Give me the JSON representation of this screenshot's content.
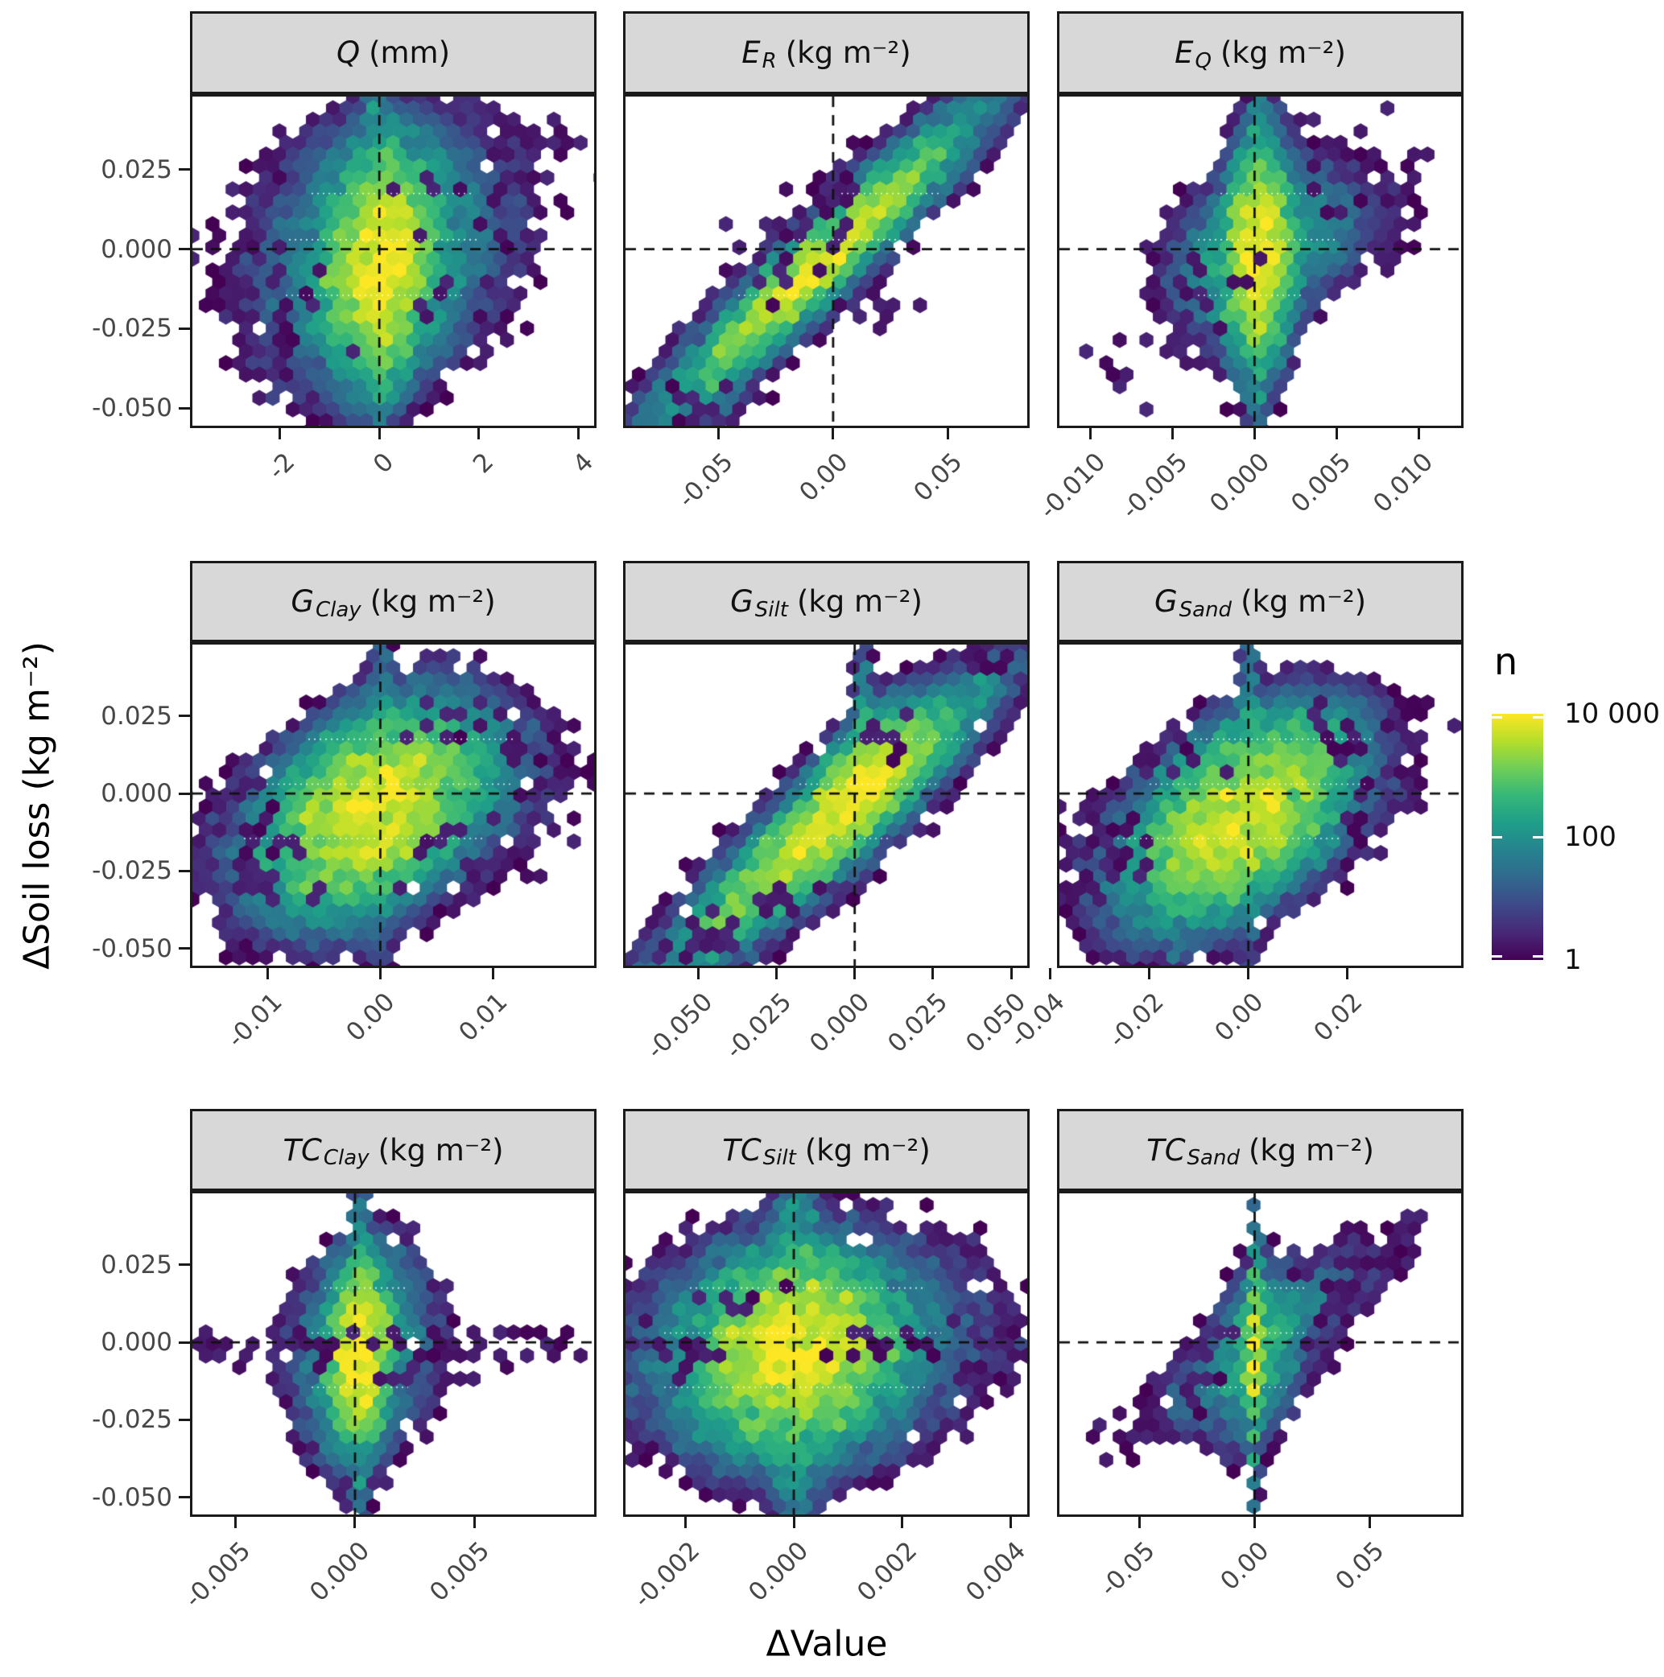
{
  "figure": {
    "y_axis_label": "ΔSoil loss (kg m⁻²)",
    "x_axis_label": "ΔValue",
    "colors": {
      "background": "#ffffff",
      "strip_bg": "#d8d8d8",
      "border": "#1a1a1a",
      "tick_label": "#474747",
      "dashed_line": "#111111",
      "white_guide": "#ffffff"
    },
    "viridis": [
      "#440154",
      "#482878",
      "#3e4989",
      "#31688e",
      "#26828e",
      "#1f9e89",
      "#35b779",
      "#6ece58",
      "#b5de2b",
      "#fde725"
    ]
  },
  "legend": {
    "title": "n",
    "labels": [
      "10 000",
      "100",
      "1"
    ],
    "values": [
      10000,
      100,
      1
    ],
    "scale": "log10",
    "domain": [
      1,
      10000
    ]
  },
  "chart_data": {
    "type": "heatmap",
    "subtype": "hexbin_facet_grid",
    "rows": 3,
    "cols": 3,
    "y_range": [
      -0.0555,
      0.048
    ],
    "y_ticks": {
      "labels": [
        "0.025",
        "0.000",
        "-0.025",
        "-0.050"
      ],
      "values": [
        0.025,
        0.0,
        -0.025,
        -0.05
      ]
    },
    "white_guide_y": [
      0.0175,
      0.003,
      -0.0145
    ],
    "zero_lines": {
      "x": 0,
      "y": 0
    },
    "panels": [
      {
        "id": "Q",
        "title": {
          "symbol": "Q",
          "subscript": "",
          "unit": "(mm)"
        },
        "x_range": [
          -3.76,
          4.32
        ],
        "x_ticks": {
          "labels": [
            "-2",
            "0",
            "2",
            "4"
          ],
          "values": [
            -2,
            0,
            2,
            4
          ]
        },
        "seed": 101,
        "clusters": [
          [
            0.05,
            -0.0045,
            0.42,
            0.0135,
            0.15,
            9000
          ],
          [
            0.0,
            -0.001,
            0.95,
            0.0165,
            0.2,
            260
          ],
          [
            0.0,
            -0.004,
            0.14,
            0.0265,
            0,
            380
          ],
          [
            0.2,
            0.004,
            1.5,
            0.019,
            0.3,
            7
          ]
        ],
        "outliers": [
          [
            -2.3,
            -0.004,
            0.55,
            0.011,
            22
          ],
          [
            2.9,
            0.031,
            0.65,
            0.007,
            16
          ],
          [
            1.9,
            0.014,
            0.8,
            0.009,
            12
          ],
          [
            -1.6,
            -0.028,
            0.5,
            0.008,
            12
          ],
          [
            1.4,
            -0.018,
            0.7,
            0.008,
            10
          ],
          [
            -2.9,
            0.001,
            0.4,
            0.004,
            6
          ],
          [
            3.6,
            0.036,
            0.3,
            0.004,
            5
          ]
        ]
      },
      {
        "id": "E_R",
        "title": {
          "symbol": "E",
          "subscript": "R",
          "unit": "(kg m⁻²)"
        },
        "x_range": [
          -0.0906,
          0.0847
        ],
        "x_ticks": {
          "labels": [
            "-0.05",
            "0.00",
            "0.05"
          ],
          "values": [
            -0.05,
            0.0,
            0.05
          ]
        },
        "seed": 202,
        "clusters": [
          [
            -0.005,
            -0.004,
            0.0195,
            0.0135,
            0.955,
            8000
          ],
          [
            -0.005,
            -0.004,
            0.0295,
            0.0205,
            0.955,
            900
          ],
          [
            -0.005,
            -0.004,
            0.036,
            0.0255,
            0.93,
            40
          ],
          [
            0.055,
            0.0365,
            0.009,
            0.0055,
            0.8,
            18
          ]
        ],
        "outliers": [
          [
            0.003,
            0.018,
            0.006,
            0.007,
            16
          ],
          [
            -0.028,
            -0.008,
            0.009,
            0.007,
            12
          ],
          [
            0.018,
            -0.018,
            0.009,
            0.005,
            8
          ],
          [
            -0.06,
            -0.048,
            0.007,
            0.004,
            8
          ],
          [
            -0.02,
            0.008,
            0.006,
            0.005,
            8
          ]
        ]
      },
      {
        "id": "E_Q",
        "title": {
          "symbol": "E",
          "subscript": "Q",
          "unit": "(kg m⁻²)"
        },
        "x_range": [
          -0.0119,
          0.0126
        ],
        "x_ticks": {
          "labels": [
            "-0.010",
            "-0.005",
            "0.000",
            "0.005",
            "0.010"
          ],
          "values": [
            -0.01,
            -0.005,
            0.0,
            0.005,
            0.01
          ]
        },
        "seed": 303,
        "clusters": [
          [
            0.0002,
            -0.0015,
            0.0008,
            0.0125,
            0.1,
            9000
          ],
          [
            0.0004,
            0.0005,
            0.0021,
            0.0105,
            0.35,
            260
          ],
          [
            0.0002,
            -0.002,
            0.00028,
            0.0265,
            0,
            420
          ],
          [
            0.002,
            0.0045,
            0.0032,
            0.0085,
            0.35,
            22
          ]
        ],
        "outliers": [
          [
            -0.0055,
            -0.0285,
            0.0022,
            0.0085,
            20
          ],
          [
            0.0068,
            0.0275,
            0.0018,
            0.0055,
            13
          ],
          [
            -0.0035,
            -0.009,
            0.0018,
            0.005,
            11
          ],
          [
            0.0045,
            0.013,
            0.002,
            0.007,
            9
          ],
          [
            -0.008,
            -0.038,
            0.0015,
            0.003,
            5
          ]
        ]
      },
      {
        "id": "G_Clay",
        "title": {
          "symbol": "G",
          "subscript": "Clay",
          "unit": "(kg m⁻²)"
        },
        "x_range": [
          -0.0167,
          0.019
        ],
        "x_ticks": {
          "labels": [
            "-0.01",
            "0.00",
            "0.01"
          ],
          "values": [
            -0.01,
            0.0,
            0.01
          ]
        },
        "seed": 404,
        "clusters": [
          [
            -0.0005,
            -0.0055,
            0.0036,
            0.0122,
            0.42,
            6500
          ],
          [
            0.0018,
            0.0042,
            0.0048,
            0.0085,
            0.3,
            210
          ],
          [
            -0.001,
            -0.011,
            0.0062,
            0.0115,
            0.28,
            60
          ],
          [
            0.0,
            -0.001,
            0.0005,
            0.025,
            0,
            100
          ]
        ],
        "outliers": [
          [
            -0.0105,
            -0.0275,
            0.0028,
            0.0075,
            22
          ],
          [
            0.0085,
            -0.021,
            0.0038,
            0.0065,
            18
          ],
          [
            0.0065,
            0.0205,
            0.0035,
            0.0055,
            14
          ],
          [
            -0.0125,
            -0.004,
            0.002,
            0.0055,
            11
          ],
          [
            0.0135,
            -0.0005,
            0.002,
            0.009,
            9
          ],
          [
            0.0145,
            0.0125,
            0.0018,
            0.0035,
            6
          ]
        ]
      },
      {
        "id": "G_Silt",
        "title": {
          "symbol": "G",
          "subscript": "Silt",
          "unit": "(kg m⁻²)"
        },
        "x_range": [
          -0.0732,
          0.0551
        ],
        "x_ticks": {
          "labels": [
            "-0.050",
            "-0.025",
            "0.000",
            "0.025",
            "0.050"
          ],
          "values": [
            -0.05,
            -0.025,
            0.0,
            0.025,
            0.05
          ]
        },
        "seed": 505,
        "clusters": [
          [
            -0.009,
            -0.011,
            0.0175,
            0.016,
            0.925,
            4200
          ],
          [
            0.002,
            0.002,
            0.0088,
            0.0098,
            0.72,
            7200
          ],
          [
            -0.009,
            -0.011,
            0.023,
            0.0205,
            0.87,
            55
          ],
          [
            0.0028,
            0.013,
            0.0013,
            0.0125,
            0,
            520
          ],
          [
            0.031,
            0.0295,
            0.0085,
            0.007,
            0.8,
            22
          ]
        ],
        "outliers": [
          [
            -0.047,
            -0.046,
            0.006,
            0.004,
            13
          ],
          [
            0.041,
            0.041,
            0.005,
            0.0035,
            10
          ],
          [
            -0.021,
            -0.036,
            0.0055,
            0.0045,
            9
          ],
          [
            0.012,
            0.021,
            0.0045,
            0.0045,
            8
          ],
          [
            -0.058,
            -0.05,
            0.003,
            0.002,
            5
          ]
        ]
      },
      {
        "id": "G_Sand",
        "title": {
          "symbol": "G",
          "subscript": "Sand",
          "unit": "(kg m⁻²)"
        },
        "x_range": [
          -0.0381,
          0.0429
        ],
        "x_ticks": {
          "labels": [
            "-0.04",
            "-0.02",
            "0.00",
            "0.02"
          ],
          "values": [
            -0.04,
            -0.02,
            0.0,
            0.02
          ]
        },
        "seed": 606,
        "clusters": [
          [
            -0.002,
            -0.008,
            0.0082,
            0.0122,
            0.5,
            5200
          ],
          [
            0.0035,
            0.0085,
            0.0088,
            0.0088,
            0.42,
            150
          ],
          [
            -0.003,
            -0.0115,
            0.0135,
            0.0125,
            0.45,
            42
          ],
          [
            0.0,
            0.004,
            0.0009,
            0.0235,
            0,
            160
          ]
        ],
        "outliers": [
          [
            -0.026,
            -0.018,
            0.0055,
            0.0065,
            20
          ],
          [
            0.021,
            0.019,
            0.0055,
            0.0055,
            15
          ],
          [
            -0.016,
            0.0085,
            0.0045,
            0.0055,
            12
          ],
          [
            0.026,
            -0.0045,
            0.0045,
            0.0075,
            10
          ],
          [
            -0.033,
            -0.029,
            0.0035,
            0.0035,
            7
          ],
          [
            0.032,
            0.0235,
            0.0025,
            0.0035,
            6
          ]
        ]
      },
      {
        "id": "TC_Clay",
        "title": {
          "symbol": "TC",
          "subscript": "Clay",
          "unit": "(kg m⁻²)"
        },
        "x_range": [
          -0.0068,
          0.01
        ],
        "x_ticks": {
          "labels": [
            "-0.005",
            "0.000",
            "0.005"
          ],
          "values": [
            -0.005,
            0.0,
            0.005
          ]
        },
        "seed": 707,
        "clusters": [
          [
            0.0002,
            -0.0035,
            0.00052,
            0.0112,
            0.1,
            9500
          ],
          [
            0.0003,
            -0.002,
            0.00115,
            0.0132,
            0.15,
            260
          ],
          [
            0.0002,
            -0.003,
            0.00018,
            0.0255,
            0,
            320
          ]
        ],
        "outliers": [
          [
            -0.003,
            0.0002,
            0.0014,
            0.0022,
            15
          ],
          [
            0.0042,
            -0.0008,
            0.0018,
            0.0018,
            13
          ],
          [
            0.003,
            -0.0098,
            0.0016,
            0.0022,
            9
          ],
          [
            -0.0052,
            -0.0032,
            0.0008,
            0.0018,
            7
          ],
          [
            0.0072,
            0.0028,
            0.001,
            0.0014,
            6
          ],
          [
            0.0088,
            -0.0025,
            0.0006,
            0.001,
            4
          ]
        ]
      },
      {
        "id": "TC_Silt",
        "title": {
          "symbol": "TC",
          "subscript": "Silt",
          "unit": "(kg m⁻²)"
        },
        "x_range": [
          -0.0031,
          0.0043
        ],
        "x_ticks": {
          "labels": [
            "-0.002",
            "0.000",
            "0.002",
            "0.004"
          ],
          "values": [
            -0.002,
            0.0,
            0.002,
            0.004
          ]
        },
        "seed": 808,
        "clusters": [
          [
            5e-05,
            -0.003,
            0.00068,
            0.0118,
            0.1,
            8000
          ],
          [
            0.0001,
            -0.0012,
            0.00125,
            0.0142,
            0.12,
            260
          ],
          [
            5e-05,
            -0.002,
            0.0002,
            0.0255,
            0,
            320
          ]
        ],
        "outliers": [
          [
            -0.0019,
            -0.0042,
            0.00055,
            0.0038,
            13
          ],
          [
            0.0019,
            0.0002,
            0.0007,
            0.0028,
            13
          ],
          [
            0.0029,
            -0.0098,
            0.0007,
            0.0018,
            8
          ],
          [
            -0.0013,
            0.0125,
            0.00055,
            0.0035,
            7
          ],
          [
            0.0038,
            0.0005,
            0.0003,
            0.001,
            4
          ]
        ]
      },
      {
        "id": "TC_Sand",
        "title": {
          "symbol": "TC",
          "subscript": "Sand",
          "unit": "(kg m⁻²)"
        },
        "x_range": [
          -0.085,
          0.0899
        ],
        "x_ticks": {
          "labels": [
            "-0.05",
            "0.00",
            "0.05"
          ],
          "values": [
            -0.05,
            0.0,
            0.05
          ]
        },
        "seed": 909,
        "clusters": [
          [
            0.0002,
            -0.003,
            0.0013,
            0.0108,
            0.1,
            9000
          ],
          [
            0.0012,
            -0.0035,
            0.0078,
            0.0108,
            0.3,
            420
          ],
          [
            0.0125,
            0.006,
            0.0175,
            0.0105,
            0.75,
            55
          ],
          [
            -0.014,
            -0.0115,
            0.0135,
            0.0085,
            0.6,
            38
          ],
          [
            0.0002,
            -0.005,
            0.0008,
            0.0265,
            0,
            220
          ]
        ],
        "outliers": [
          [
            0.04,
            0.0205,
            0.014,
            0.0075,
            22
          ],
          [
            0.062,
            0.033,
            0.0075,
            0.004,
            8
          ],
          [
            -0.051,
            -0.0325,
            0.011,
            0.0055,
            16
          ],
          [
            -0.0305,
            -0.0195,
            0.0075,
            0.0045,
            11
          ],
          [
            -0.021,
            -0.0045,
            0.0075,
            0.0045,
            10
          ],
          [
            0.028,
            -0.0095,
            0.006,
            0.004,
            7
          ]
        ]
      }
    ]
  }
}
